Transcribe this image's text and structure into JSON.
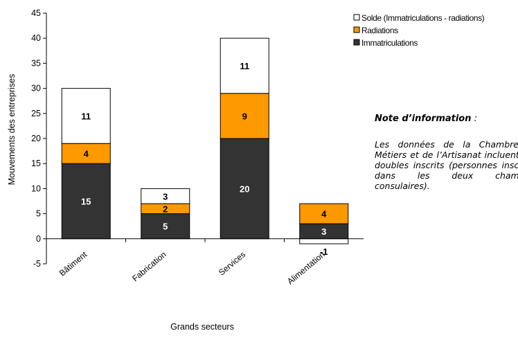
{
  "chart_data": {
    "type": "bar",
    "stacked": true,
    "categories": [
      "Bâtiment",
      "Fabrication",
      "Services",
      "Alimentation"
    ],
    "series": [
      {
        "name": "Immatriculations",
        "values": [
          15,
          5,
          20,
          3
        ],
        "color": "#333333"
      },
      {
        "name": "Radiations",
        "values": [
          4,
          2,
          9,
          4
        ],
        "color": "#ff9900"
      },
      {
        "name": "Solde (Immatriculations - radiations)",
        "values": [
          11,
          3,
          11,
          -1
        ],
        "color": "#ffffff"
      }
    ],
    "xlabel": "Grands secteurs",
    "ylabel": "Mouvements des entreprises",
    "ylim": [
      -5,
      45
    ],
    "yticks": [
      -5,
      0,
      5,
      10,
      15,
      20,
      25,
      30,
      35,
      40,
      45
    ],
    "legend_position": "top-right",
    "grid": false
  },
  "note": {
    "title_bold": "Note d’information",
    "title_suffix": " :",
    "text": "Les données de la Chambre de Métiers et de l’Artisanat incluent des doubles inscrits (personnes inscrites dans les deux chambres consulaires)."
  }
}
